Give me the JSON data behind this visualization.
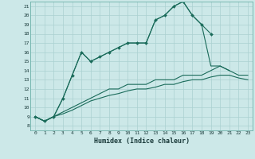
{
  "title": "",
  "xlabel": "Humidex (Indice chaleur)",
  "ylabel": "",
  "bg_color": "#cce8e8",
  "grid_color": "#aad0d0",
  "line_color": "#1a6b5a",
  "xlim": [
    -0.5,
    23.5
  ],
  "ylim": [
    7.5,
    21.5
  ],
  "xticks": [
    0,
    1,
    2,
    3,
    4,
    5,
    6,
    7,
    8,
    9,
    10,
    11,
    12,
    13,
    14,
    15,
    16,
    17,
    18,
    19,
    20,
    21,
    22,
    23
  ],
  "yticks": [
    8,
    9,
    10,
    11,
    12,
    13,
    14,
    15,
    16,
    17,
    18,
    19,
    20,
    21
  ],
  "series": [
    {
      "x": [
        0,
        1,
        2,
        3,
        4,
        5,
        6,
        7,
        8,
        9,
        10,
        11,
        12,
        13,
        14,
        15,
        16,
        17,
        18,
        19
      ],
      "y": [
        9,
        8.5,
        9,
        11,
        13.5,
        16,
        15,
        15.5,
        16,
        16.5,
        17,
        17,
        17,
        19.5,
        20,
        21,
        21.5,
        20,
        19,
        18
      ],
      "marker": true
    },
    {
      "x": [
        0,
        1,
        2,
        3,
        4,
        5,
        6,
        7,
        8,
        9,
        10,
        11,
        12,
        13,
        14,
        15,
        16,
        17,
        18,
        19,
        20,
        21
      ],
      "y": [
        9,
        8.5,
        9,
        11,
        13.5,
        16,
        15,
        15.5,
        16,
        16.5,
        17,
        17,
        17,
        19.5,
        20,
        21,
        21.5,
        20,
        19,
        14.5,
        14.5,
        14
      ],
      "marker": false
    },
    {
      "x": [
        0,
        1,
        2,
        3,
        4,
        5,
        6,
        7,
        8,
        9,
        10,
        11,
        12,
        13,
        14,
        15,
        16,
        17,
        18,
        19,
        20,
        21,
        22,
        23
      ],
      "y": [
        9,
        8.5,
        9,
        9.5,
        10,
        10.5,
        11,
        11.5,
        12,
        12,
        12.5,
        12.5,
        12.5,
        13,
        13,
        13,
        13.5,
        13.5,
        13.5,
        14,
        14.5,
        14,
        13.5,
        13.5
      ],
      "marker": false
    },
    {
      "x": [
        0,
        1,
        2,
        3,
        4,
        5,
        6,
        7,
        8,
        9,
        10,
        11,
        12,
        13,
        14,
        15,
        16,
        17,
        18,
        19,
        20,
        21,
        22,
        23
      ],
      "y": [
        9,
        8.5,
        9,
        9.3,
        9.7,
        10.2,
        10.7,
        11.0,
        11.3,
        11.5,
        11.8,
        12.0,
        12.0,
        12.2,
        12.5,
        12.5,
        12.8,
        13.0,
        13.0,
        13.3,
        13.5,
        13.5,
        13.2,
        13.0
      ],
      "marker": false
    }
  ]
}
